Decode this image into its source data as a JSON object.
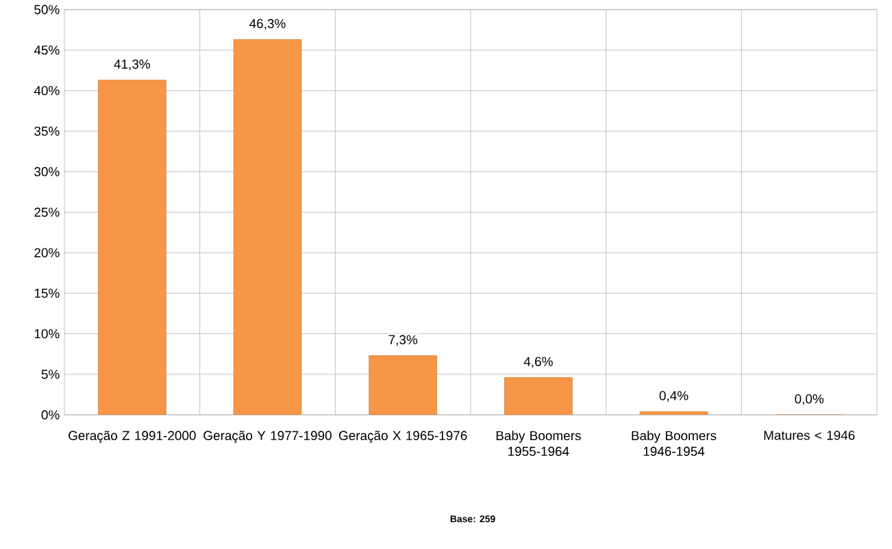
{
  "chart_data": {
    "type": "bar",
    "categories": [
      "Geração Z 1991-2000",
      "Geração Y 1977-1990",
      "Geração X 1965-1976",
      "Baby Boomers 1955-1964",
      "Baby Boomers 1946-1954",
      "Matures < 1946"
    ],
    "values": [
      41.3,
      46.3,
      7.3,
      4.6,
      0.4,
      0.0
    ],
    "value_labels": [
      "41,3%",
      "46,3%",
      "7,3%",
      "4,6%",
      "0,4%",
      "0,0%"
    ],
    "color": "#f79646",
    "ylim": [
      0,
      50
    ],
    "yticks": [
      {
        "value": 0,
        "label": "0%"
      },
      {
        "value": 5,
        "label": "5%"
      },
      {
        "value": 10,
        "label": "10%"
      },
      {
        "value": 15,
        "label": "15%"
      },
      {
        "value": 20,
        "label": "20%"
      },
      {
        "value": 25,
        "label": "25%"
      },
      {
        "value": 30,
        "label": "30%"
      },
      {
        "value": 35,
        "label": "35%"
      },
      {
        "value": 40,
        "label": "40%"
      },
      {
        "value": 45,
        "label": "45%"
      },
      {
        "value": 50,
        "label": "50%"
      }
    ],
    "grid": true,
    "annotations": [
      "**Base: 259**"
    ]
  }
}
